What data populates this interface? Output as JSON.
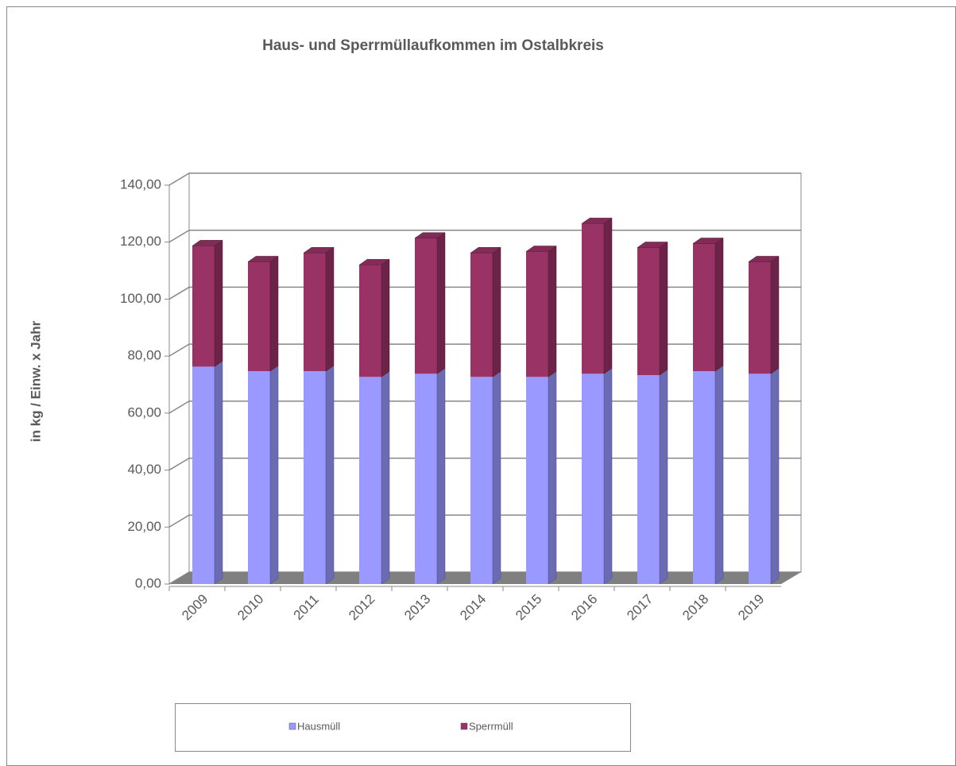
{
  "chart_data": {
    "type": "bar3d_stacked",
    "title": "Haus- und Sperrmüllaufkommen im Ostalbkreis",
    "y_label": "in kg / Einw. x Jahr",
    "categories": [
      "2009",
      "2010",
      "2011",
      "2012",
      "2013",
      "2014",
      "2015",
      "2016",
      "2017",
      "2018",
      "2019"
    ],
    "series": [
      {
        "name": "Hausmüll",
        "color": "#9999ff",
        "values": [
          76.3,
          74.7,
          74.7,
          72.7,
          73.8,
          72.7,
          72.7,
          73.8,
          73.3,
          74.7,
          73.8
        ]
      },
      {
        "name": "Sperrmüll",
        "color": "#993366",
        "values": [
          42.4,
          38.4,
          41.5,
          39.3,
          47.6,
          43.5,
          44.0,
          52.7,
          44.8,
          44.8,
          39.3
        ]
      }
    ],
    "ylim": [
      0,
      140
    ],
    "yticks": [
      {
        "value": 0,
        "label": "0,00"
      },
      {
        "value": 20,
        "label": "20,00"
      },
      {
        "value": 40,
        "label": "40,00"
      },
      {
        "value": 60,
        "label": "60,00"
      },
      {
        "value": 80,
        "label": "80,00"
      },
      {
        "value": 100,
        "label": "100,00"
      },
      {
        "value": 120,
        "label": "120,00"
      },
      {
        "value": 140,
        "label": "140,00"
      }
    ],
    "grid": true
  }
}
